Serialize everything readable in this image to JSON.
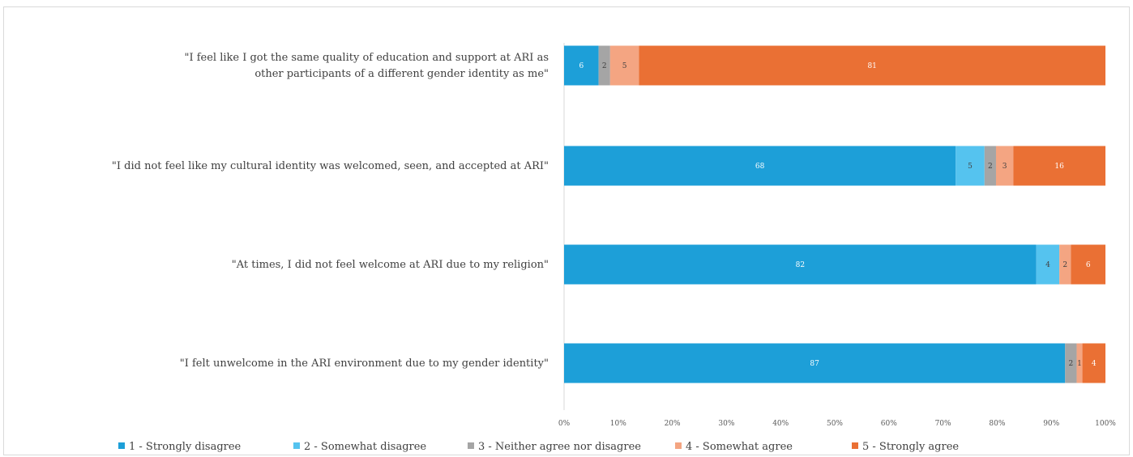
{
  "chart_data": {
    "type": "bar",
    "orientation": "horizontal",
    "stacked": "percent",
    "title": "",
    "xlabel": "",
    "ylabel": "",
    "xlim": [
      0,
      100
    ],
    "x_ticks": [
      "0%",
      "10%",
      "20%",
      "30%",
      "40%",
      "50%",
      "60%",
      "70%",
      "80%",
      "90%",
      "100%"
    ],
    "grid": false,
    "legend_position": "bottom",
    "categories": [
      "\"I feel like I got the same quality of education and support at ARI as other participants of a different gender identity as me\"",
      "\"I did not feel like my cultural identity was welcomed, seen, and accepted at ARI\"",
      "\"At times, I did not feel welcome at ARI due to my religion\"",
      "\"I felt unwelcome in the ARI environment due to my gender identity\""
    ],
    "category_lines": [
      [
        "\"I feel like I got the same quality of education and support at ARI as",
        "other participants of a different gender identity as me\""
      ],
      [
        "\"I did not feel like my cultural identity was welcomed, seen, and accepted at ARI\""
      ],
      [
        "\"At times, I did not feel welcome at ARI due to my religion\""
      ],
      [
        "\"I felt unwelcome in the ARI environment due to my gender identity\""
      ]
    ],
    "series": [
      {
        "name": "1 - Strongly disagree",
        "color": "#1d9fd8",
        "label_color": "#ffffff",
        "values": [
          6,
          68,
          82,
          87
        ]
      },
      {
        "name": "2 - Somewhat disagree",
        "color": "#55c3ef",
        "label_color": "#404040",
        "values": [
          0,
          5,
          4,
          0
        ]
      },
      {
        "name": "3 - Neither agree nor disagree",
        "color": "#a5a5a5",
        "label_color": "#404040",
        "values": [
          2,
          2,
          0,
          2
        ]
      },
      {
        "name": "4 - Somewhat agree",
        "color": "#f4a582",
        "label_color": "#404040",
        "values": [
          5,
          3,
          2,
          1
        ]
      },
      {
        "name": "5 - Strongly agree",
        "color": "#ea7034",
        "label_color": "#ffffff",
        "values": [
          81,
          16,
          6,
          4
        ]
      }
    ]
  }
}
